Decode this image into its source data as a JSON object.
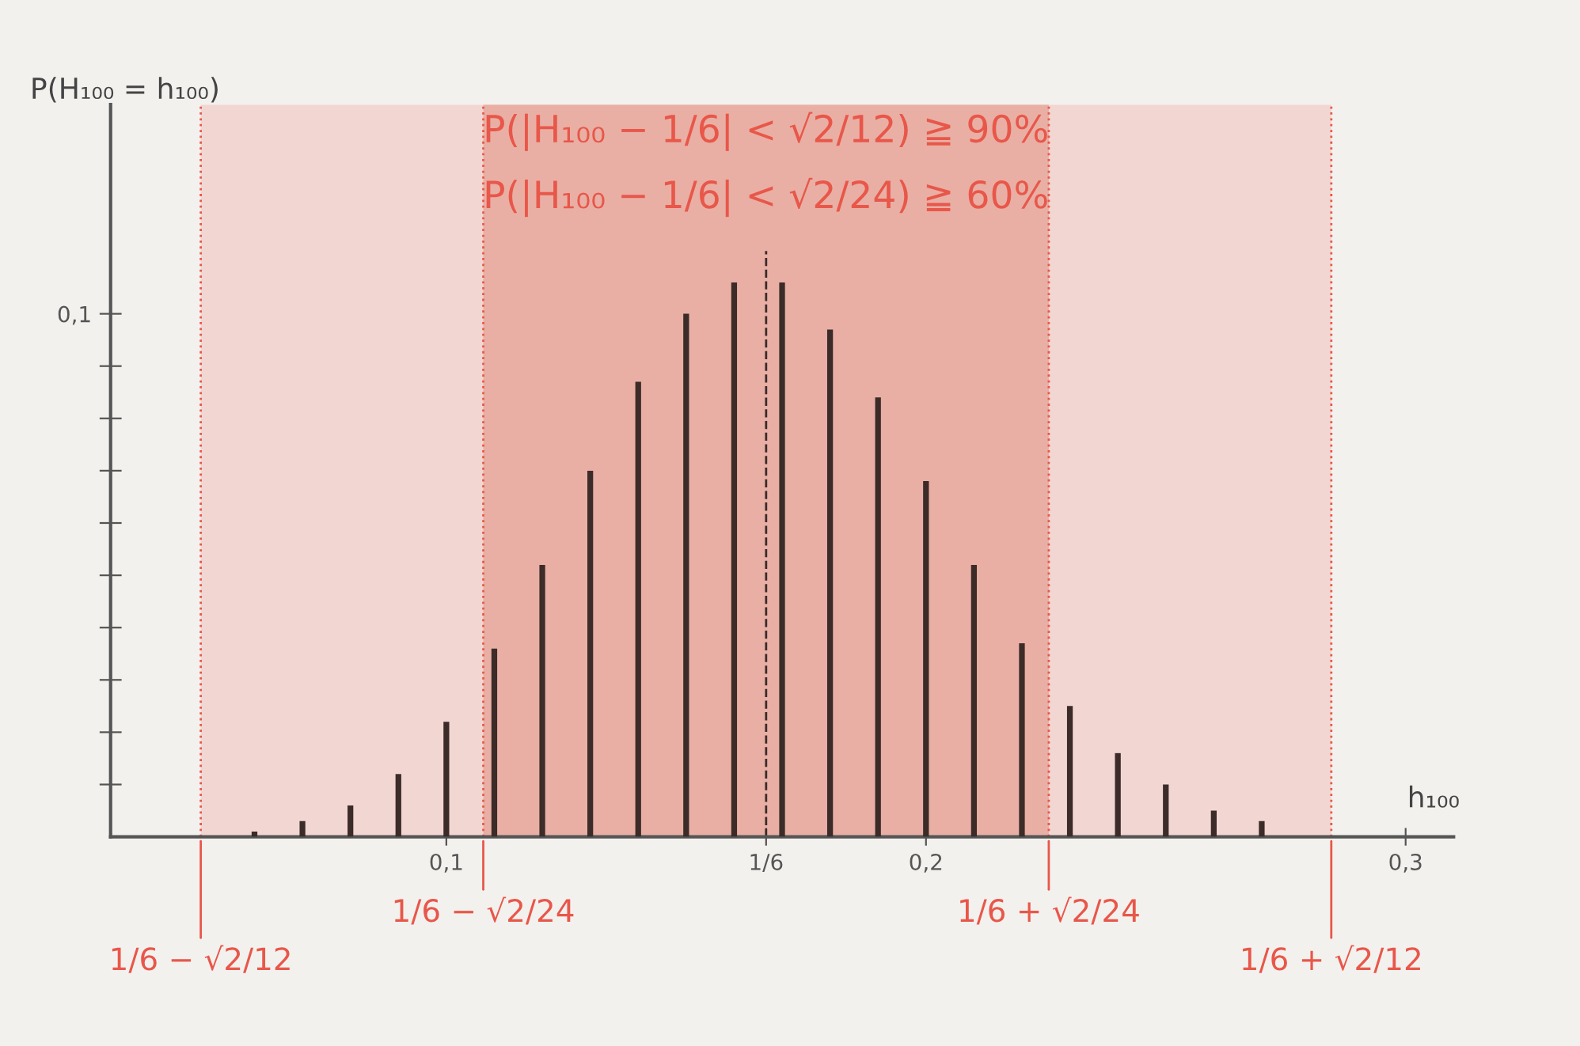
{
  "chart_data": {
    "type": "bar",
    "x": [
      0.06,
      0.07,
      0.08,
      0.09,
      0.1,
      0.11,
      0.12,
      0.13,
      0.14,
      0.15,
      0.16,
      0.17,
      0.18,
      0.19,
      0.2,
      0.21,
      0.22,
      0.23,
      0.24,
      0.25,
      0.26,
      0.27
    ],
    "values": [
      0.001,
      0.003,
      0.006,
      0.012,
      0.022,
      0.036,
      0.052,
      0.07,
      0.087,
      0.1,
      0.106,
      0.106,
      0.097,
      0.084,
      0.068,
      0.052,
      0.037,
      0.025,
      0.016,
      0.01,
      0.005,
      0.003
    ],
    "color": "#3b2b29",
    "xlabel": "h₁₀₀",
    "ylabel": "P(H₁₀₀ = h₁₀₀)",
    "xlim": [
      0.03,
      0.31
    ],
    "xticks": [
      {
        "value": 0.1,
        "label": "0,1"
      },
      {
        "value": 0.16666667,
        "label": "1/6"
      },
      {
        "value": 0.2,
        "label": "0,2"
      },
      {
        "value": 0.3,
        "label": "0,3"
      }
    ],
    "ylim": [
      0,
      0.14
    ],
    "yticks": [
      {
        "value": 0.01,
        "label": null
      },
      {
        "value": 0.02,
        "label": null
      },
      {
        "value": 0.03,
        "label": null
      },
      {
        "value": 0.04,
        "label": null
      },
      {
        "value": 0.05,
        "label": null
      },
      {
        "value": 0.06,
        "label": null
      },
      {
        "value": 0.07,
        "label": null
      },
      {
        "value": 0.08,
        "label": null
      },
      {
        "value": 0.09,
        "label": null
      },
      {
        "value": 0.1,
        "label": "0,1"
      }
    ],
    "bands": [
      {
        "axis": "x",
        "from": 0.0488,
        "to": 0.2845,
        "label": "P(|H₁₀₀ − 1/6| < √2/12) ≧ 90%",
        "color": "#f2d6d2"
      },
      {
        "axis": "x",
        "from": 0.1077,
        "to": 0.2256,
        "label": "P(|H₁₀₀ − 1/6| < √2/24) ≧ 60%",
        "color": "#e9afa4"
      }
    ],
    "ref_lines": [
      {
        "axis": "x",
        "value": 0.0488,
        "label": "1/6 − √2/12",
        "color": "#e8574a",
        "line_style": "dotted"
      },
      {
        "axis": "x",
        "value": 0.1077,
        "label": "1/6 − √2/24",
        "color": "#e8574a",
        "line_style": "dotted"
      },
      {
        "axis": "x",
        "value": 0.16666667,
        "color": "#3b2b29",
        "line_style": "dashed"
      },
      {
        "axis": "x",
        "value": 0.2256,
        "label": "1/6 + √2/24",
        "color": "#e8574a",
        "line_style": "dotted"
      },
      {
        "axis": "x",
        "value": 0.2845,
        "label": "1/6 + √2/12",
        "color": "#e8574a",
        "line_style": "dotted"
      }
    ]
  }
}
